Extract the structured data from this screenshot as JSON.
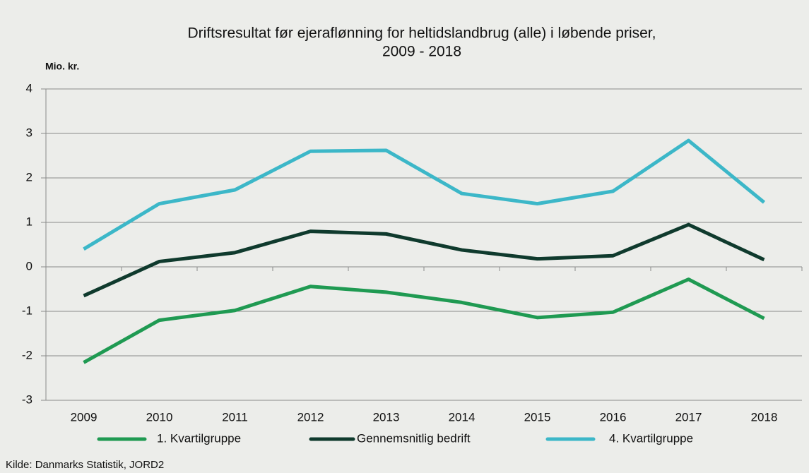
{
  "chart_data": {
    "type": "line",
    "title": [
      "Driftsresultat før ejeraflønning for heltidslandbrug (alle) i løbende priser,",
      "2009 - 2018"
    ],
    "y_label": "Mio. kr.",
    "source": "Kilde:  Danmarks Statistik, JORD2",
    "categories": [
      "2009",
      "2010",
      "2011",
      "2012",
      "2013",
      "2014",
      "2015",
      "2016",
      "2017",
      "2018"
    ],
    "series": [
      {
        "name": "1. Kvartilgruppe",
        "color": "#1f9a52",
        "values": [
          -2.15,
          -1.2,
          -0.98,
          -0.44,
          -0.57,
          -0.8,
          -1.14,
          -1.02,
          -0.28,
          -1.16
        ]
      },
      {
        "name": "Gennemsnitlig bedrift",
        "color": "#0f3a2d",
        "values": [
          -0.65,
          0.12,
          0.32,
          0.8,
          0.74,
          0.38,
          0.18,
          0.25,
          0.95,
          0.16
        ]
      },
      {
        "name": "4. Kvartilgruppe",
        "color": "#3cb7c8",
        "values": [
          0.4,
          1.42,
          1.73,
          2.6,
          2.62,
          1.65,
          1.42,
          1.7,
          2.84,
          1.45
        ]
      }
    ],
    "ylim": [
      -3,
      4
    ],
    "yticks": [
      -3,
      -2,
      -1,
      0,
      1,
      2,
      3,
      4
    ],
    "grid": true
  }
}
